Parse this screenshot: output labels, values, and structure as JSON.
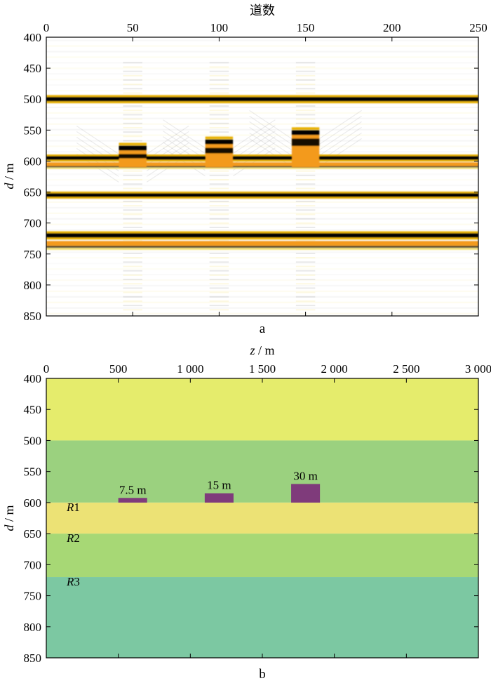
{
  "chart_data": [
    {
      "type": "heatmap",
      "panel_label": "a",
      "xlabel": "道数",
      "ylabel_var": "d",
      "ylabel_unit": " / m",
      "x_axis_position": "top",
      "xlim": [
        0,
        250
      ],
      "ylim": [
        400,
        850
      ],
      "y_inverted": true,
      "xticks": [
        0,
        50,
        100,
        150,
        200,
        250
      ],
      "yticks": [
        400,
        450,
        500,
        550,
        600,
        650,
        700,
        750,
        800,
        850
      ],
      "colors": {
        "positive": "#e8b000",
        "positive_strong": "#f39a1e",
        "negative": "#000000",
        "faint": "#f4e27a",
        "background": "#ffffff"
      },
      "reflectors": [
        {
          "depth": 500,
          "polarity": "negative",
          "trace_range": [
            0,
            250
          ],
          "band": 7
        },
        {
          "depth": 595,
          "polarity": "negative",
          "trace_range": [
            0,
            250
          ],
          "band": 6
        },
        {
          "depth": 605,
          "polarity": "positive",
          "trace_range": [
            0,
            250
          ],
          "band": 6
        },
        {
          "depth": 655,
          "polarity": "negative",
          "trace_range": [
            0,
            250
          ],
          "band": 6
        },
        {
          "depth": 720,
          "polarity": "negative",
          "trace_range": [
            0,
            250
          ],
          "band": 7
        },
        {
          "depth": 733,
          "polarity": "positive",
          "trace_range": [
            0,
            250
          ],
          "band": 8
        }
      ],
      "anomalies": [
        {
          "trace_range": [
            42,
            58
          ],
          "top_depth": 575,
          "bottom_depth": 610
        },
        {
          "trace_range": [
            92,
            108
          ],
          "top_depth": 565,
          "bottom_depth": 610
        },
        {
          "trace_range": [
            142,
            158
          ],
          "top_depth": 550,
          "bottom_depth": 610
        }
      ]
    },
    {
      "type": "heatmap",
      "panel_label": "b",
      "xlabel_var": "z",
      "xlabel_unit": " / m",
      "ylabel_var": "d",
      "ylabel_unit": " / m",
      "x_axis_position": "top",
      "xlim": [
        0,
        3000
      ],
      "ylim": [
        400,
        850
      ],
      "y_inverted": true,
      "xticks": [
        0,
        500,
        1000,
        1500,
        2000,
        2500,
        3000
      ],
      "xtick_labels": [
        "0",
        "500",
        "1 000",
        "1 500",
        "2 000",
        "2 500",
        "3 000"
      ],
      "yticks": [
        400,
        450,
        500,
        550,
        600,
        650,
        700,
        750,
        800,
        850
      ],
      "layers": [
        {
          "top": 400,
          "bottom": 500,
          "color": "#e5ec6c"
        },
        {
          "top": 500,
          "bottom": 600,
          "color": "#9bd17f"
        },
        {
          "top": 600,
          "bottom": 650,
          "color": "#ece275"
        },
        {
          "top": 650,
          "bottom": 720,
          "color": "#a7d875"
        },
        {
          "top": 720,
          "bottom": 850,
          "color": "#7cc8a2"
        }
      ],
      "layer_labels": [
        {
          "prefix": "R",
          "index": "1",
          "depth": 600
        },
        {
          "prefix": "R",
          "index": "2",
          "depth": 650
        },
        {
          "prefix": "R",
          "index": "3",
          "depth": 720
        }
      ],
      "blocks": [
        {
          "label": "7.5 m",
          "x_range": [
            500,
            700
          ],
          "top": 592.5,
          "bottom": 600,
          "color": "#7f3b7b"
        },
        {
          "label": "15 m",
          "x_range": [
            1100,
            1300
          ],
          "top": 585,
          "bottom": 600,
          "color": "#7f3b7b"
        },
        {
          "label": "30 m",
          "x_range": [
            1700,
            1900
          ],
          "top": 570,
          "bottom": 600,
          "color": "#7f3b7b"
        }
      ]
    }
  ]
}
